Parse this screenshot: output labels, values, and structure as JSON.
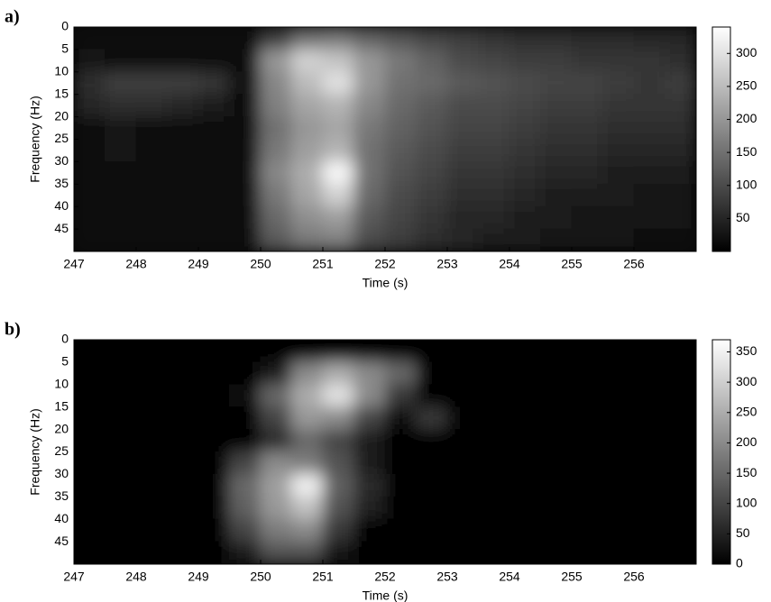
{
  "chart_data": [
    {
      "type": "heatmap",
      "panel_label": "a)",
      "x_label": "Time (s)",
      "y_label": "Frequency (Hz)",
      "xlim": [
        247,
        257
      ],
      "xticks": [
        247,
        248,
        249,
        250,
        251,
        252,
        253,
        254,
        255,
        256
      ],
      "ylim": [
        0,
        50
      ],
      "yticks": [
        0,
        5,
        10,
        15,
        20,
        25,
        30,
        35,
        40,
        45
      ],
      "y_reversed": true,
      "zlim": [
        0,
        340
      ],
      "colorbar_ticks": [
        50,
        100,
        150,
        200,
        250,
        300
      ],
      "colormap": [
        "#000000",
        "#ffffff"
      ],
      "z": [
        [
          15,
          15,
          15,
          15,
          15,
          10,
          80,
          150,
          160,
          130,
          110,
          90,
          80,
          70,
          60,
          60,
          55,
          55,
          50,
          50
        ],
        [
          30,
          20,
          20,
          20,
          20,
          20,
          200,
          280,
          260,
          200,
          160,
          130,
          100,
          90,
          80,
          80,
          70,
          70,
          70,
          60
        ],
        [
          60,
          80,
          80,
          80,
          70,
          20,
          180,
          250,
          300,
          200,
          150,
          140,
          120,
          110,
          100,
          90,
          90,
          80,
          70,
          80
        ],
        [
          50,
          60,
          60,
          50,
          40,
          15,
          170,
          220,
          240,
          180,
          140,
          120,
          100,
          100,
          90,
          80,
          80,
          70,
          70,
          70
        ],
        [
          20,
          30,
          20,
          20,
          20,
          10,
          150,
          200,
          220,
          160,
          130,
          110,
          90,
          90,
          80,
          70,
          70,
          60,
          60,
          60
        ],
        [
          15,
          25,
          15,
          20,
          15,
          10,
          160,
          210,
          240,
          150,
          120,
          100,
          80,
          80,
          70,
          60,
          60,
          50,
          50,
          50
        ],
        [
          15,
          20,
          15,
          20,
          15,
          10,
          180,
          230,
          330,
          150,
          110,
          90,
          70,
          70,
          60,
          50,
          50,
          40,
          40,
          40
        ],
        [
          15,
          20,
          10,
          20,
          15,
          10,
          160,
          220,
          280,
          140,
          100,
          80,
          60,
          60,
          50,
          40,
          40,
          40,
          30,
          30
        ],
        [
          10,
          15,
          10,
          15,
          10,
          10,
          140,
          190,
          210,
          120,
          90,
          70,
          50,
          50,
          40,
          40,
          30,
          30,
          30,
          30
        ],
        [
          10,
          10,
          10,
          10,
          10,
          10,
          120,
          160,
          170,
          100,
          80,
          60,
          50,
          40,
          40,
          30,
          30,
          30,
          20,
          20
        ]
      ]
    },
    {
      "type": "heatmap",
      "panel_label": "b)",
      "x_label": "Time (s)",
      "y_label": "Frequency (Hz)",
      "xlim": [
        247,
        257
      ],
      "xticks": [
        247,
        248,
        249,
        250,
        251,
        252,
        253,
        254,
        255,
        256
      ],
      "ylim": [
        0,
        50
      ],
      "yticks": [
        0,
        5,
        10,
        15,
        20,
        25,
        30,
        35,
        40,
        45
      ],
      "y_reversed": true,
      "zlim": [
        0,
        370
      ],
      "colorbar_ticks": [
        0,
        50,
        100,
        150,
        200,
        250,
        300,
        350
      ],
      "colormap": [
        "#000000",
        "#ffffff"
      ],
      "z": [
        [
          0,
          0,
          0,
          0,
          0,
          0,
          0,
          0,
          0,
          0,
          0,
          0,
          0,
          0,
          0,
          0,
          0,
          0,
          0,
          0
        ],
        [
          0,
          0,
          0,
          0,
          0,
          0,
          40,
          200,
          250,
          200,
          150,
          0,
          0,
          0,
          0,
          0,
          0,
          0,
          0,
          0
        ],
        [
          0,
          0,
          0,
          0,
          0,
          20,
          150,
          250,
          330,
          200,
          80,
          0,
          0,
          0,
          0,
          0,
          0,
          0,
          0,
          0
        ],
        [
          0,
          0,
          0,
          0,
          0,
          0,
          100,
          220,
          200,
          100,
          20,
          80,
          0,
          0,
          0,
          0,
          0,
          0,
          0,
          0
        ],
        [
          0,
          0,
          0,
          0,
          0,
          0,
          60,
          150,
          100,
          40,
          0,
          0,
          0,
          0,
          0,
          0,
          0,
          0,
          0,
          0
        ],
        [
          0,
          0,
          0,
          0,
          0,
          100,
          200,
          180,
          120,
          40,
          0,
          0,
          0,
          0,
          0,
          0,
          0,
          0,
          0,
          0
        ],
        [
          0,
          0,
          0,
          0,
          0,
          150,
          230,
          350,
          140,
          60,
          0,
          0,
          0,
          0,
          0,
          0,
          0,
          0,
          0,
          0
        ],
        [
          0,
          0,
          0,
          0,
          0,
          140,
          220,
          280,
          120,
          50,
          0,
          0,
          0,
          0,
          0,
          0,
          0,
          0,
          0,
          0
        ],
        [
          0,
          0,
          0,
          0,
          0,
          100,
          180,
          200,
          80,
          0,
          0,
          0,
          0,
          0,
          0,
          0,
          0,
          0,
          0,
          0
        ],
        [
          0,
          0,
          0,
          0,
          0,
          40,
          120,
          120,
          30,
          0,
          0,
          0,
          0,
          0,
          0,
          0,
          0,
          0,
          0,
          0
        ]
      ]
    }
  ]
}
